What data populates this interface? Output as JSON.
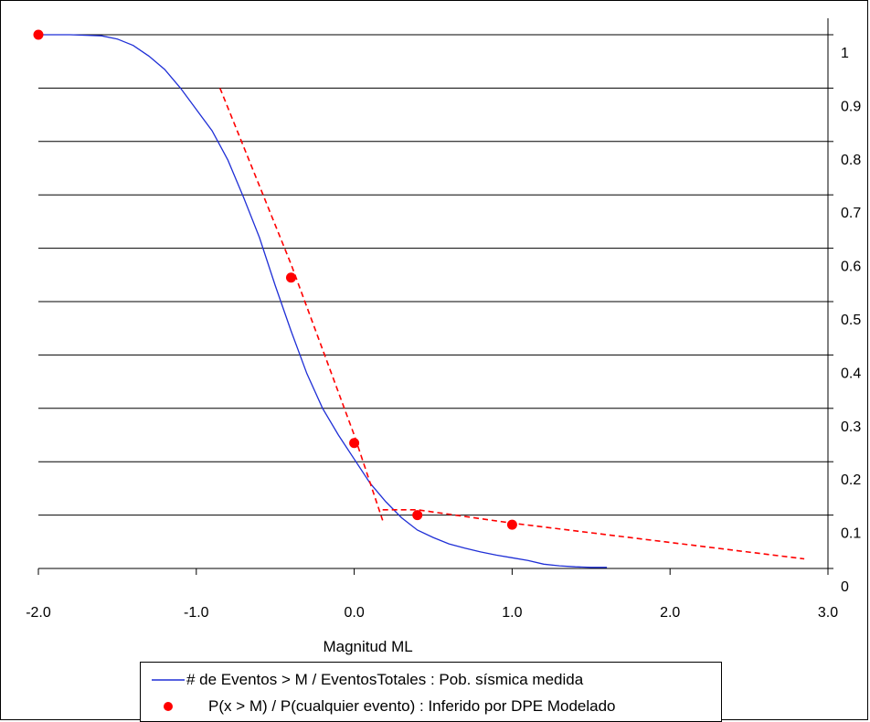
{
  "chart_data": {
    "type": "line",
    "title": "",
    "xlabel": "Magnitud ML",
    "ylabel": "",
    "xlim": [
      -2.0,
      3.0
    ],
    "ylim": [
      0,
      1.05
    ],
    "x_ticks": [
      "-2.0",
      "-1.0",
      "0.0",
      "1.0",
      "2.0",
      "3.0"
    ],
    "x_tick_values": [
      -2.0,
      -1.0,
      0.0,
      1.0,
      2.0,
      3.0
    ],
    "y_ticks": [
      "0",
      "0.1",
      "0.2",
      "0.3",
      "0.4",
      "0.5",
      "0.6",
      "0.7",
      "0.8",
      "0.9",
      "1"
    ],
    "y_tick_values": [
      0,
      0.1,
      0.2,
      0.3,
      0.4,
      0.5,
      0.6,
      0.7,
      0.8,
      0.9,
      1.0
    ],
    "y_axis_side": "right",
    "grid": "horizontal",
    "legend_position": "bottom",
    "series": [
      {
        "name": "# de Eventos > M / EventosTotales : Pob. sísmica medida",
        "kind": "line",
        "color": "#1f2fd6",
        "x": [
          -2.0,
          -1.8,
          -1.6,
          -1.5,
          -1.4,
          -1.3,
          -1.2,
          -1.1,
          -1.0,
          -0.9,
          -0.8,
          -0.7,
          -0.6,
          -0.5,
          -0.4,
          -0.3,
          -0.2,
          -0.1,
          0.0,
          0.1,
          0.2,
          0.3,
          0.4,
          0.5,
          0.6,
          0.7,
          0.8,
          0.9,
          1.0,
          1.1,
          1.2,
          1.3,
          1.4,
          1.5,
          1.6
        ],
        "y": [
          1.0,
          1.0,
          0.998,
          0.992,
          0.98,
          0.96,
          0.935,
          0.9,
          0.86,
          0.82,
          0.765,
          0.695,
          0.62,
          0.53,
          0.445,
          0.365,
          0.3,
          0.25,
          0.205,
          0.16,
          0.125,
          0.095,
          0.072,
          0.058,
          0.046,
          0.038,
          0.031,
          0.025,
          0.02,
          0.015,
          0.008,
          0.005,
          0.003,
          0.002,
          0.002
        ]
      },
      {
        "name": "P(x > M) / P(cualquier evento) : Inferido por DPE Modelado",
        "kind": "points",
        "color": "#ff0000",
        "x": [
          -2.0,
          -0.4,
          0.0,
          0.4,
          1.0
        ],
        "y": [
          1.0,
          0.545,
          0.235,
          0.1,
          0.082
        ]
      },
      {
        "kind": "dashed",
        "color": "#ff0000",
        "x": [
          -0.85,
          -0.4,
          0.0,
          0.18
        ],
        "y": [
          0.9,
          0.57,
          0.25,
          0.09
        ]
      },
      {
        "kind": "dashed",
        "color": "#ff0000",
        "x": [
          0.18,
          0.4,
          1.0,
          2.85
        ],
        "y": [
          0.11,
          0.11,
          0.085,
          0.018
        ]
      }
    ]
  }
}
